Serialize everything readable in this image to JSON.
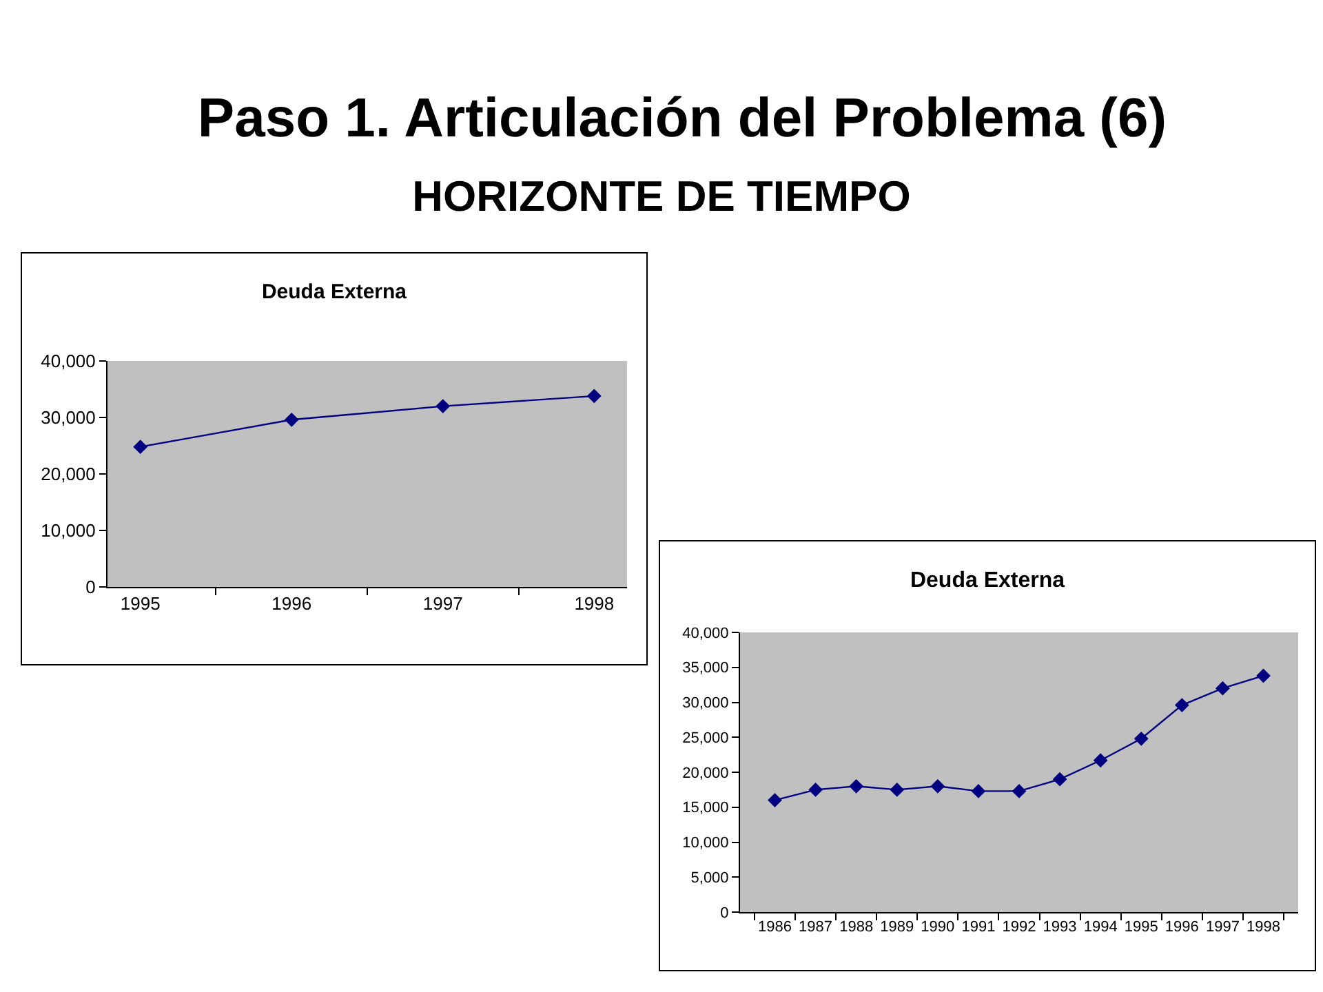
{
  "chart_data": [
    {
      "type": "other",
      "title": "Paso 1. Articulación del Problema (6)",
      "subtitle": "HORIZONTE DE TIEMPO"
    },
    {
      "type": "line",
      "title": "Deuda Externa",
      "categories": [
        "1995",
        "1996",
        "1997",
        "1998"
      ],
      "values": [
        24800,
        29600,
        32000,
        33800
      ],
      "color": "#000080",
      "marker": "diamond",
      "line_style": "solid",
      "ylim": [
        0,
        40000
      ],
      "yticks": [
        0,
        {
          "value": 10000,
          "label": "10,000"
        },
        {
          "value": 20000,
          "label": "20,000"
        },
        {
          "value": 30000,
          "label": "30,000"
        },
        {
          "value": 40000,
          "label": "40,000"
        }
      ]
    },
    {
      "type": "line",
      "title": "Deuda Externa",
      "categories": [
        "1986",
        "1987",
        "1988",
        "1989",
        "1990",
        "1991",
        "1992",
        "1993",
        "1994",
        "1995",
        "1996",
        "1997",
        "1998"
      ],
      "values": [
        16000,
        17500,
        18000,
        17500,
        18000,
        17300,
        17300,
        19000,
        21700,
        24800,
        29600,
        32000,
        33800
      ],
      "color": "#000080",
      "marker": "diamond",
      "line_style": "solid",
      "ylim": [
        0,
        40000
      ],
      "yticks": [
        0,
        {
          "value": 5000,
          "label": "5,000"
        },
        {
          "value": 10000,
          "label": "10,000"
        },
        {
          "value": 15000,
          "label": "15,000"
        },
        {
          "value": 20000,
          "label": "20,000"
        },
        {
          "value": 25000,
          "label": "25,000"
        },
        {
          "value": 30000,
          "label": "30,000"
        },
        {
          "value": 35000,
          "label": "35,000"
        },
        {
          "value": 40000,
          "label": "40,000"
        }
      ]
    }
  ]
}
